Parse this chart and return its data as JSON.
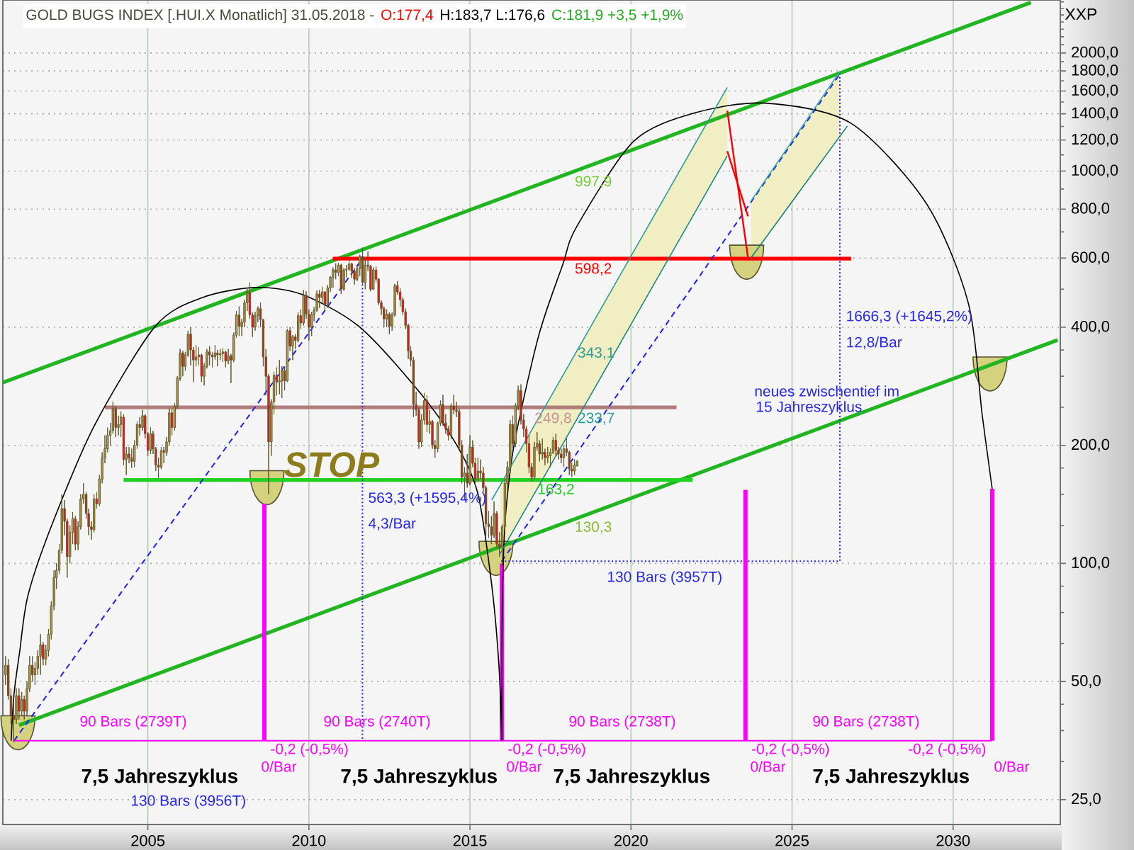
{
  "chart_data": {
    "type": "candlestick",
    "title": "GOLD BUGS INDEX [.HUI.X Monatlich] 31.05.2018 -",
    "ylabel": "XXP",
    "log": true,
    "grid": true,
    "xlim": [
      "2000-07",
      "2033-05"
    ],
    "xticks": [
      {
        "value": "2005",
        "label": "2005"
      },
      {
        "value": "2010",
        "label": "2010"
      },
      {
        "value": "2015",
        "label": "2015"
      },
      {
        "value": "2020",
        "label": "2020"
      },
      {
        "value": "2025",
        "label": "2025"
      },
      {
        "value": "2030",
        "label": "2030"
      }
    ],
    "ylim": [
      21.6,
      2730
    ],
    "yticks": [
      {
        "value": 25,
        "label": "25,0"
      },
      {
        "value": 31.25,
        "label": null
      },
      {
        "value": 37.5,
        "label": null
      },
      {
        "value": 43.75,
        "label": null
      },
      {
        "value": 50,
        "label": "50,0"
      },
      {
        "value": 62.5,
        "label": null
      },
      {
        "value": 75,
        "label": null
      },
      {
        "value": 87.5,
        "label": null
      },
      {
        "value": 100,
        "label": "100,0"
      },
      {
        "value": 125,
        "label": null
      },
      {
        "value": 150,
        "label": null
      },
      {
        "value": 175,
        "label": null
      },
      {
        "value": 200,
        "label": "200,0"
      },
      {
        "value": 250,
        "label": null
      },
      {
        "value": 300,
        "label": null
      },
      {
        "value": 350,
        "label": null
      },
      {
        "value": 400,
        "label": "400,0"
      },
      {
        "value": 500,
        "label": null
      },
      {
        "value": 600,
        "label": "600,0"
      },
      {
        "value": 700,
        "label": null
      },
      {
        "value": 800,
        "label": "800,0"
      },
      {
        "value": 900,
        "label": null
      },
      {
        "value": 1000,
        "label": "1000,0"
      },
      {
        "value": 1100,
        "label": null
      },
      {
        "value": 1200,
        "label": "1200,0"
      },
      {
        "value": 1300,
        "label": null
      },
      {
        "value": 1400,
        "label": "1400,0"
      },
      {
        "value": 1500,
        "label": null
      },
      {
        "value": 1600,
        "label": "1600,0"
      },
      {
        "value": 1700,
        "label": null
      },
      {
        "value": 1800,
        "label": "1800,0"
      },
      {
        "value": 1900,
        "label": null
      },
      {
        "value": 2000,
        "label": "2000,0"
      },
      {
        "value": 2100,
        "label": null
      },
      {
        "value": 2200,
        "label": null
      },
      {
        "value": 2300,
        "label": null
      },
      {
        "value": 2400,
        "label": null
      },
      {
        "value": 2500,
        "label": null
      },
      {
        "value": 2600,
        "label": null
      },
      {
        "value": 2700,
        "label": null
      }
    ],
    "series": [
      {
        "color": "#b09c4a",
        "x": [
          "2000-08",
          "2000-12",
          "2001-02",
          "2001-04",
          "2001-05",
          "2001-07",
          "2001-08",
          "2001-09",
          "2001-11",
          "2001-12",
          "2002-01",
          "2002-02",
          "2002-03",
          "2002-04",
          "2002-05",
          "2002-08",
          "2002-09",
          "2002-11",
          "2002-12",
          "2003-01",
          "2003-05",
          "2003-07",
          "2003-08",
          "2003-09",
          "2003-10",
          "2003-11",
          "2003-12",
          "2004-02",
          "2004-03",
          "2004-05",
          "2004-08",
          "2004-09",
          "2004-11",
          "2005-02",
          "2005-06",
          "2005-08",
          "2005-09",
          "2005-11",
          "2005-12",
          "2006-01",
          "2006-03",
          "2006-04",
          "2006-07",
          "2006-08",
          "2006-10",
          "2006-11",
          "2007-02",
          "2007-04",
          "2007-05",
          "2007-07",
          "2007-09",
          "2007-10",
          "2007-12",
          "2008-01",
          "2008-02",
          "2008-05",
          "2008-06",
          "2008-11",
          "2008-12",
          "2009-02",
          "2009-03",
          "2009-05",
          "2009-07",
          "2009-09",
          "2009-11",
          "2010-02",
          "2010-03",
          "2010-04",
          "2010-06",
          "2010-08",
          "2010-09",
          "2010-10",
          "2010-12",
          "2011-02",
          "2011-03",
          "2011-04",
          "2011-07",
          "2011-08",
          "2011-10",
          "2012-01",
          "2012-06",
          "2012-08",
          "2012-09",
          "2013-07",
          "2013-08",
          "2013-10",
          "2014-01",
          "2014-02",
          "2014-06",
          "2014-11",
          "2015-01",
          "2015-04",
          "2015-10",
          "2016-01",
          "2016-02",
          "2016-03",
          "2016-04",
          "2016-06",
          "2016-07",
          "2017-01",
          "2017-02",
          "2017-04",
          "2017-06",
          "2017-07",
          "2017-08",
          "2017-12",
          "2018-04",
          "2018-05"
        ],
        "ohlc": [
          [
            52,
            58,
            49,
            55
          ],
          [
            40,
            48,
            39,
            46
          ],
          [
            42,
            47,
            41,
            45
          ],
          [
            42,
            50,
            41,
            48
          ],
          [
            48,
            58,
            47,
            55
          ],
          [
            52,
            56,
            49,
            54
          ],
          [
            54,
            60,
            52,
            58
          ],
          [
            58,
            66,
            52,
            62
          ],
          [
            57,
            62,
            55,
            60
          ],
          [
            60,
            68,
            58,
            66
          ],
          [
            66,
            80,
            64,
            78
          ],
          [
            78,
            96,
            76,
            92
          ],
          [
            92,
            100,
            86,
            96
          ],
          [
            96,
            112,
            94,
            108
          ],
          [
            108,
            150,
            106,
            138
          ],
          [
            104,
            125,
            100,
            120
          ],
          [
            120,
            135,
            112,
            130
          ],
          [
            112,
            128,
            108,
            124
          ],
          [
            124,
            150,
            122,
            146
          ],
          [
            146,
            160,
            142,
            150
          ],
          [
            122,
            150,
            120,
            146
          ],
          [
            142,
            168,
            140,
            164
          ],
          [
            164,
            192,
            160,
            186
          ],
          [
            186,
            212,
            180,
            196
          ],
          [
            196,
            222,
            192,
            212
          ],
          [
            212,
            228,
            200,
            218
          ],
          [
            218,
            258,
            214,
            248
          ],
          [
            222,
            238,
            212,
            226
          ],
          [
            226,
            244,
            210,
            236
          ],
          [
            184,
            198,
            168,
            190
          ],
          [
            182,
            206,
            176,
            200
          ],
          [
            200,
            230,
            196,
            226
          ],
          [
            222,
            246,
            218,
            238
          ],
          [
            194,
            222,
            190,
            214
          ],
          [
            176,
            198,
            174,
            194
          ],
          [
            192,
            210,
            188,
            204
          ],
          [
            204,
            248,
            200,
            242
          ],
          [
            222,
            256,
            218,
            252
          ],
          [
            252,
            300,
            248,
            296
          ],
          [
            296,
            352,
            292,
            344
          ],
          [
            318,
            346,
            310,
            340
          ],
          [
            340,
            392,
            336,
            384
          ],
          [
            330,
            360,
            318,
            336
          ],
          [
            336,
            356,
            320,
            340
          ],
          [
            300,
            324,
            284,
            318
          ],
          [
            318,
            352,
            314,
            346
          ],
          [
            336,
            360,
            330,
            344
          ],
          [
            340,
            352,
            330,
            342
          ],
          [
            342,
            354,
            326,
            346
          ],
          [
            328,
            352,
            322,
            338
          ],
          [
            330,
            388,
            326,
            382
          ],
          [
            382,
            440,
            376,
            430
          ],
          [
            402,
            420,
            380,
            412
          ],
          [
            412,
            470,
            400,
            462
          ],
          [
            462,
            500,
            440,
            490
          ],
          [
            400,
            438,
            392,
            428
          ],
          [
            428,
            452,
            412,
            446
          ],
          [
            204,
            262,
            188,
            258
          ],
          [
            258,
            308,
            240,
            302
          ],
          [
            290,
            330,
            270,
            292
          ],
          [
            292,
            318,
            264,
            310
          ],
          [
            292,
            396,
            290,
            392
          ],
          [
            358,
            382,
            330,
            378
          ],
          [
            370,
            436,
            366,
            428
          ],
          [
            410,
            498,
            404,
            482
          ],
          [
            400,
            438,
            380,
            432
          ],
          [
            432,
            450,
            414,
            442
          ],
          [
            442,
            496,
            438,
            486
          ],
          [
            476,
            506,
            462,
            492
          ],
          [
            458,
            512,
            448,
            504
          ],
          [
            504,
            540,
            492,
            536
          ],
          [
            536,
            568,
            504,
            560
          ],
          [
            552,
            584,
            540,
            576
          ],
          [
            500,
            566,
            496,
            560
          ],
          [
            560,
            576,
            536,
            562
          ],
          [
            562,
            592,
            556,
            580
          ],
          [
            530,
            572,
            524,
            564
          ],
          [
            564,
            612,
            540,
            606
          ],
          [
            520,
            596,
            500,
            576
          ],
          [
            500,
            568,
            498,
            560
          ],
          [
            420,
            444,
            400,
            432
          ],
          [
            402,
            436,
            392,
            430
          ],
          [
            430,
            516,
            426,
            510
          ],
          [
            204,
            240,
            198,
            232
          ],
          [
            232,
            272,
            226,
            260
          ],
          [
            226,
            246,
            214,
            230
          ],
          [
            196,
            230,
            192,
            228
          ],
          [
            228,
            260,
            224,
            254
          ],
          [
            212,
            256,
            208,
            252
          ],
          [
            166,
            176,
            145,
            170
          ],
          [
            160,
            212,
            158,
            198
          ],
          [
            164,
            186,
            162,
            172
          ],
          [
            118,
            144,
            116,
            134
          ],
          [
            110,
            126,
            99,
            124
          ],
          [
            124,
            164,
            120,
            160
          ],
          [
            160,
            182,
            152,
            176
          ],
          [
            176,
            232,
            170,
            226
          ],
          [
            202,
            256,
            198,
            252
          ],
          [
            252,
            284,
            246,
            276
          ],
          [
            166,
            204,
            164,
            198
          ],
          [
            198,
            216,
            194,
            202
          ],
          [
            190,
            208,
            184,
            192
          ],
          [
            186,
            198,
            180,
            188
          ],
          [
            188,
            196,
            176,
            192
          ],
          [
            192,
            210,
            190,
            206
          ],
          [
            186,
            200,
            176,
            196
          ],
          [
            172,
            184,
            168,
            178
          ],
          [
            177.4,
            183.7,
            176.6,
            181.9
          ]
        ]
      },
      {
        "color": "#e8141c",
        "x": [
          "2000-09",
          "2000-10",
          "2000-11",
          "2001-01",
          "2001-03",
          "2001-06",
          "2001-10",
          "2002-06",
          "2002-07",
          "2002-10",
          "2003-02",
          "2003-03",
          "2003-04",
          "2003-06",
          "2004-01",
          "2004-04",
          "2004-06",
          "2004-07",
          "2004-10",
          "2004-12",
          "2005-01",
          "2005-03",
          "2005-04",
          "2005-05",
          "2005-07",
          "2005-10",
          "2006-02",
          "2006-05",
          "2006-06",
          "2006-09",
          "2006-12",
          "2007-01",
          "2007-03",
          "2007-06",
          "2007-08",
          "2007-11",
          "2008-03",
          "2008-04",
          "2008-07",
          "2008-08",
          "2008-09",
          "2008-10",
          "2009-01",
          "2009-04",
          "2009-06",
          "2009-08",
          "2009-10",
          "2009-12",
          "2010-01",
          "2010-05",
          "2010-07",
          "2010-11",
          "2011-01",
          "2011-05",
          "2011-06",
          "2011-09",
          "2011-11",
          "2011-12",
          "2012-02",
          "2012-03",
          "2012-04",
          "2012-05",
          "2012-07",
          "2012-10",
          "2012-11",
          "2012-12",
          "2013-01",
          "2013-02",
          "2013-03",
          "2013-04",
          "2013-05",
          "2013-06",
          "2013-09",
          "2013-11",
          "2013-12",
          "2014-03",
          "2014-04",
          "2014-05",
          "2014-07",
          "2014-08",
          "2014-09",
          "2014-10",
          "2014-12",
          "2015-02",
          "2015-03",
          "2015-05",
          "2015-06",
          "2015-07",
          "2015-08",
          "2015-09",
          "2015-11",
          "2015-12",
          "2016-05",
          "2016-08",
          "2016-09",
          "2016-10",
          "2016-11",
          "2016-12",
          "2017-03",
          "2017-05",
          "2017-09",
          "2017-10",
          "2017-11",
          "2018-01",
          "2018-02",
          "2018-03"
        ],
        "ohlc": [
          [
            55,
            57,
            45,
            46
          ],
          [
            46,
            48,
            39,
            41
          ],
          [
            41,
            44,
            35,
            40
          ],
          [
            46,
            48,
            40,
            42
          ],
          [
            45,
            46,
            40,
            42
          ],
          [
            55,
            58,
            50,
            52
          ],
          [
            62,
            63,
            55,
            57
          ],
          [
            138,
            145,
            118,
            128
          ],
          [
            128,
            130,
            92,
            104
          ],
          [
            130,
            132,
            108,
            112
          ],
          [
            150,
            152,
            130,
            134
          ],
          [
            134,
            138,
            118,
            124
          ],
          [
            124,
            128,
            115,
            122
          ],
          [
            146,
            152,
            138,
            142
          ],
          [
            248,
            252,
            210,
            222
          ],
          [
            236,
            240,
            178,
            184
          ],
          [
            190,
            198,
            180,
            186
          ],
          [
            186,
            196,
            175,
            182
          ],
          [
            226,
            236,
            212,
            222
          ],
          [
            238,
            240,
            208,
            214
          ],
          [
            214,
            216,
            188,
            194
          ],
          [
            214,
            218,
            190,
            196
          ],
          [
            196,
            198,
            172,
            178
          ],
          [
            178,
            186,
            165,
            176
          ],
          [
            194,
            198,
            180,
            192
          ],
          [
            242,
            248,
            212,
            222
          ],
          [
            344,
            348,
            300,
            318
          ],
          [
            384,
            400,
            320,
            350
          ],
          [
            350,
            356,
            290,
            330
          ],
          [
            340,
            342,
            290,
            300
          ],
          [
            346,
            358,
            320,
            340
          ],
          [
            340,
            346,
            316,
            336
          ],
          [
            344,
            350,
            318,
            340
          ],
          [
            346,
            348,
            316,
            328
          ],
          [
            338,
            342,
            288,
            330
          ],
          [
            430,
            452,
            380,
            402
          ],
          [
            490,
            520,
            420,
            430
          ],
          [
            430,
            436,
            378,
            400
          ],
          [
            446,
            462,
            400,
            418
          ],
          [
            418,
            420,
            318,
            336
          ],
          [
            336,
            352,
            268,
            300
          ],
          [
            300,
            304,
            150,
            204
          ],
          [
            302,
            316,
            268,
            290
          ],
          [
            310,
            318,
            276,
            292
          ],
          [
            392,
            400,
            348,
            358
          ],
          [
            378,
            384,
            352,
            370
          ],
          [
            428,
            444,
            396,
            410
          ],
          [
            482,
            494,
            420,
            432
          ],
          [
            432,
            444,
            370,
            400
          ],
          [
            486,
            498,
            448,
            476
          ],
          [
            492,
            494,
            440,
            458
          ],
          [
            560,
            582,
            530,
            552
          ],
          [
            576,
            580,
            486,
            500
          ],
          [
            580,
            584,
            534,
            556
          ],
          [
            556,
            566,
            514,
            530
          ],
          [
            606,
            638,
            512,
            520
          ],
          [
            576,
            624,
            556,
            572
          ],
          [
            572,
            576,
            494,
            500
          ],
          [
            560,
            572,
            520,
            530
          ],
          [
            530,
            534,
            456,
            462
          ],
          [
            462,
            468,
            430,
            446
          ],
          [
            446,
            452,
            400,
            420
          ],
          [
            432,
            436,
            384,
            402
          ],
          [
            510,
            524,
            484,
            492
          ],
          [
            492,
            502,
            452,
            470
          ],
          [
            470,
            476,
            430,
            438
          ],
          [
            438,
            446,
            396,
            404
          ],
          [
            404,
            408,
            332,
            348
          ],
          [
            348,
            358,
            318,
            330
          ],
          [
            330,
            336,
            236,
            254
          ],
          [
            254,
            274,
            238,
            246
          ],
          [
            246,
            250,
            196,
            204
          ],
          [
            260,
            268,
            216,
            226
          ],
          [
            230,
            232,
            196,
            200
          ],
          [
            200,
            206,
            186,
            196
          ],
          [
            254,
            269,
            224,
            228
          ],
          [
            228,
            240,
            214,
            220
          ],
          [
            220,
            224,
            206,
            212
          ],
          [
            252,
            269,
            240,
            246
          ],
          [
            246,
            258,
            236,
            244
          ],
          [
            244,
            248,
            196,
            200
          ],
          [
            200,
            206,
            160,
            166
          ],
          [
            170,
            190,
            156,
            160
          ],
          [
            198,
            206,
            176,
            180
          ],
          [
            180,
            186,
            158,
            164
          ],
          [
            172,
            184,
            164,
            170
          ],
          [
            170,
            176,
            152,
            156
          ],
          [
            156,
            158,
            118,
            126
          ],
          [
            126,
            136,
            116,
            124
          ],
          [
            124,
            132,
            112,
            118
          ],
          [
            134,
            136,
            110,
            112
          ],
          [
            112,
            120,
            104,
            110
          ],
          [
            226,
            238,
            196,
            202
          ],
          [
            276,
            286,
            226,
            232
          ],
          [
            232,
            240,
            210,
            220
          ],
          [
            220,
            224,
            192,
            202
          ],
          [
            202,
            212,
            170,
            176
          ],
          [
            176,
            180,
            162,
            166
          ],
          [
            202,
            206,
            182,
            190
          ],
          [
            192,
            196,
            178,
            186
          ],
          [
            206,
            214,
            188,
            194
          ],
          [
            194,
            198,
            184,
            190
          ],
          [
            190,
            196,
            180,
            186
          ],
          [
            196,
            208,
            188,
            192
          ],
          [
            192,
            194,
            168,
            174
          ],
          [
            174,
            180,
            166,
            172
          ]
        ]
      },
      {
        "type": "scatter",
        "color": "#d4d27e",
        "x": [
          "2000-12-20",
          "2008-09-12",
          "2015-10-23",
          "2023-08-05",
          "2031-02-24"
        ],
        "values": [
          37.0,
          156,
          103,
          586,
          304
        ]
      },
      {
        "type": "line",
        "color": "#22b522",
        "x": [
          "2000-07",
          "2032-06"
        ],
        "values": [
          289,
          2690
        ]
      },
      {
        "type": "line",
        "color": "#22b522",
        "x": [
          "2001-01",
          "2033-04"
        ],
        "values": [
          38.7,
          371
        ]
      },
      {
        "type": "line",
        "color": "#22d022",
        "x": [
          "2004-04",
          "2021-12"
        ],
        "values": [
          163.2,
          163.2
        ]
      },
      {
        "type": "line",
        "color": "#ff0000",
        "x": [
          "2010-10",
          "2026-11"
        ],
        "values": [
          598.2,
          598.2
        ]
      },
      {
        "type": "line",
        "color": "#b07c7c",
        "x": [
          "2003-09",
          "2021-06"
        ],
        "values": [
          249.8,
          249.8
        ]
      },
      {
        "type": "line",
        "color": "#2020f0",
        "line_style": "dashed",
        "x": [
          "2000-11-05",
          "2011-08-31"
        ],
        "values": [
          35.3,
          598.6
        ]
      },
      {
        "type": "line",
        "color": "#2020f0",
        "line_style": "dashed",
        "x": [
          "2015-12-28",
          "2026-06-27"
        ],
        "values": [
          101.3,
          1767.6
        ]
      },
      {
        "type": "line",
        "color": "#2020f0",
        "line_style": "dotted",
        "x": [
          "2011-08-31",
          "2011-08-31"
        ],
        "values": [
          598.6,
          35.3
        ]
      },
      {
        "type": "line",
        "color": "#2020f0",
        "line_style": "dotted",
        "x": [
          "2015-12-20",
          "2026-06-27",
          "2026-06-27"
        ],
        "values": [
          101.3,
          101.3,
          1767.6
        ]
      },
      {
        "type": "line",
        "color": "#ff00ff",
        "x": [
          "2000-11-05",
          "2031-03-20"
        ],
        "values": [
          35.3,
          35.3
        ]
      },
      {
        "type": "line",
        "color": "#ff00ff",
        "x": [
          "2008-08-14",
          "2008-08-14"
        ],
        "values": [
          142,
          35.3
        ]
      },
      {
        "type": "line",
        "color": "#ff00ff",
        "x": [
          "2015-12-28",
          "2015-12-28"
        ],
        "values": [
          100,
          35.3
        ]
      },
      {
        "type": "line",
        "color": "#ff00ff",
        "x": [
          "2023-07-22",
          "2023-07-22"
        ],
        "values": [
          154,
          35.3
        ]
      },
      {
        "type": "line",
        "color": "#ff00ff",
        "x": [
          "2031-03-20",
          "2031-03-20"
        ],
        "values": [
          155,
          35.3
        ]
      },
      {
        "type": "line",
        "color": "#000000",
        "x": [
          "2000-10-03",
          "2000-11-05",
          "2001-01-08",
          "2001-04-13",
          "2002-01-12",
          "2003-05-07",
          "2005-03-29",
          "2006-09-13",
          "2008-04-30",
          "2009-10-12",
          "2011-07-15",
          "2013-04-19",
          "2014-06-27",
          "2015-03-27",
          "2015-09-05",
          "2015-11-25",
          "2015-12-28"
        ],
        "values": [
          35.3,
          46.4,
          59.5,
          83,
          126,
          225,
          403,
          476,
          505,
          485,
          403,
          282,
          207,
          152,
          88,
          55,
          35.3
        ]
      },
      {
        "type": "line",
        "color": "#000000",
        "x": [
          "2015-12-28",
          "2015-12-28",
          "2016-01-12",
          "2016-02-14",
          "2016-05-18",
          "2017-02-18",
          "2017-11-18",
          "2018-04-26",
          "2020-01-30",
          "2021-12-20",
          "2024-03-03",
          "2026-10-26",
          "2029-02-24",
          "2030-06-19",
          "2030-11-27",
          "2031-03-20"
        ],
        "values": [
          35.3,
          59.5,
          98,
          137,
          202,
          380,
          577,
          722,
          1190,
          1406,
          1490,
          1326,
          832,
          464,
          239,
          155
        ]
      },
      {
        "type": "line",
        "color": "#2a9d94",
        "x": [
          "2015-09-05",
          "2022-12-28"
        ],
        "values": [
          145,
          1634
        ]
      },
      {
        "type": "line",
        "color": "#1f8a82",
        "x": [
          "2015-12-10",
          "2022-12-28"
        ],
        "values": [
          106,
          1094
        ],
        "lower": [
          106,
          1094
        ],
        "upper": [
          159,
          1634
        ]
      },
      {
        "type": "line",
        "color": "#3aaaa2",
        "x": [
          "2023-09-23",
          "2026-07-01"
        ],
        "values": [
          839,
          1800
        ],
        "lower": [
          601,
          1232
        ],
        "upper": [
          839,
          1800
        ]
      },
      {
        "type": "line",
        "color": "#17807a",
        "x": [
          "2023-09-23",
          "2026-09-20"
        ],
        "values": [
          601,
          1303
        ]
      },
      {
        "type": "line",
        "color": "#ff0000",
        "x": [
          "2022-12-28",
          "2023-08-20"
        ],
        "values": [
          1426,
          601
        ]
      },
      {
        "type": "line",
        "color": "#ff0000",
        "x": [
          "2022-12-28",
          "2023-08-20"
        ],
        "values": [
          1124,
          767
        ]
      }
    ],
    "annotations": [
      "O:177,4",
      "H:183,7 L:176,6",
      "C:181,9 +3,5 +1,9%",
      {
        "text": "997,9",
        "x": "2018-04",
        "y": 997.9
      },
      {
        "text": "598,2",
        "x": "2018-04",
        "y": 598.2
      },
      {
        "text": "343,1",
        "x": "2018-04",
        "y": 343.1
      },
      {
        "text": "249,8",
        "x": "2017-01",
        "y": 249.8
      },
      {
        "text": "233,7",
        "x": "2018-04",
        "y": 233.7
      },
      {
        "text": "163,2",
        "x": "2017-02",
        "y": 163.2
      },
      {
        "text": "130,3",
        "x": "2018-04",
        "y": 130.3
      },
      {
        "text": "563,3 (+1595,4%)",
        "x": "2011-11",
        "y": 146
      },
      {
        "text": "4,3/Bar",
        "x": "2011-11",
        "y": 126
      },
      {
        "text": "1666,3 (+1645,2%)",
        "x": "2026-09",
        "y": 424
      },
      {
        "text": "12,8/Bar",
        "x": "2026-09",
        "y": 365
      },
      "neues zwischentief im",
      "15 Jahreszyklus",
      "130 Bars (3957T)",
      "130 Bars (3956T)",
      "90 Bars (2739T)",
      "90 Bars (2740T)",
      "90 Bars (2738T)",
      "90 Bars (2738T)",
      {
        "text": "-0,2 (-0,5%)",
        "x": "2008-08-14",
        "y": 35.3
      },
      {
        "text": "-0,2 (-0,5%)",
        "x": "2015-12-28",
        "y": 35.3
      },
      {
        "text": "-0,2 (-0,5%)",
        "x": "2023-07-22",
        "y": 35.3
      },
      {
        "text": "-0,2 (-0,5%)",
        "x": "2031-03-20",
        "y": 35.3
      },
      "0/Bar",
      "0/Bar",
      "0/Bar",
      "0/Bar",
      "7,5 Jahreszyklus",
      "7,5 Jahreszyklus",
      "7,5 Jahreszyklus",
      "7,5 Jahreszyklus",
      "STOP"
    ]
  }
}
